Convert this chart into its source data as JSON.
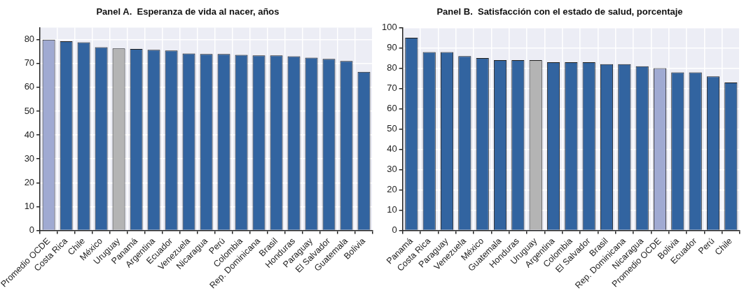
{
  "chart_data": [
    {
      "type": "bar",
      "title": "Panel A.  Esperanza de vida al nacer, años",
      "categories": [
        "Promedio OCDE",
        "Costa Rica",
        "Chile",
        "México",
        "Uruguay",
        "Panamá",
        "Argentina",
        "Ecuador",
        "Venezuela",
        "Nicaragua",
        "Perú",
        "Colombia",
        "Rep. Dominicana",
        "Brasil",
        "Honduras",
        "Paraguay",
        "El Salvador",
        "Guatemala",
        "Bolivia"
      ],
      "values": [
        80.0,
        79.3,
        78.9,
        76.8,
        76.3,
        76.1,
        75.7,
        75.4,
        74.2,
        74.0,
        74.0,
        73.6,
        73.4,
        73.4,
        73.0,
        72.4,
        71.9,
        71.0,
        66.5
      ],
      "colors": [
        "#a0aad2",
        "#3264a0",
        "#3264a0",
        "#3264a0",
        "#b4b4b4",
        "#3264a0",
        "#3264a0",
        "#3264a0",
        "#3264a0",
        "#3264a0",
        "#3264a0",
        "#3264a0",
        "#3264a0",
        "#3264a0",
        "#3264a0",
        "#3264a0",
        "#3264a0",
        "#3264a0",
        "#3264a0"
      ],
      "ylim": [
        0,
        85
      ],
      "yticks": [
        0,
        10,
        20,
        30,
        40,
        50,
        60,
        70,
        80
      ],
      "grid": true
    },
    {
      "type": "bar",
      "title": "Panel B.  Satisfacción con el estado de salud, porcentaje",
      "categories": [
        "Panamá",
        "Costa Rica",
        "Paraguay",
        "Venezuela",
        "México",
        "Guatemala",
        "Honduras",
        "Uruguay",
        "Argentina",
        "Colombia",
        "El Salvador",
        "Brasil",
        "Rep. Dominicana",
        "Nicaragua",
        "Promedio OCDE",
        "Bolivia",
        "Ecuador",
        "Perú",
        "Chile"
      ],
      "values": [
        95,
        88,
        88,
        86,
        85,
        84,
        84,
        84,
        83,
        83,
        83,
        82,
        82,
        81,
        80,
        78,
        78,
        76,
        73
      ],
      "colors": [
        "#3264a0",
        "#3264a0",
        "#3264a0",
        "#3264a0",
        "#3264a0",
        "#3264a0",
        "#3264a0",
        "#b4b4b4",
        "#3264a0",
        "#3264a0",
        "#3264a0",
        "#3264a0",
        "#3264a0",
        "#3264a0",
        "#a0aad2",
        "#3264a0",
        "#3264a0",
        "#3264a0",
        "#3264a0"
      ],
      "ylim": [
        0,
        100
      ],
      "yticks": [
        0,
        10,
        20,
        30,
        40,
        50,
        60,
        70,
        80,
        90,
        100
      ],
      "grid": true
    }
  ]
}
